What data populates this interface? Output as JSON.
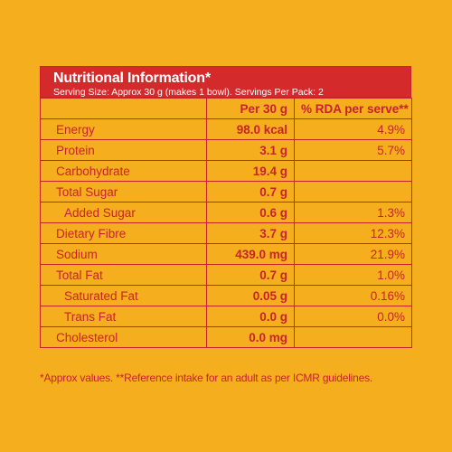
{
  "header": {
    "title": "Nutritional Information*",
    "serving": "Serving Size: Approx 30 g (makes 1 bowl). Servings Per Pack: 2"
  },
  "columns": {
    "per": "Per 30 g",
    "rda": "% RDA per serve**"
  },
  "rows": [
    {
      "name": "Energy",
      "value": "98.0 kcal",
      "rda": "4.9%",
      "indent": false
    },
    {
      "name": "Protein",
      "value": "3.1 g",
      "rda": "5.7%",
      "indent": false
    },
    {
      "name": "Carbohydrate",
      "value": "19.4 g",
      "rda": "",
      "indent": false
    },
    {
      "name": "Total Sugar",
      "value": "0.7 g",
      "rda": "",
      "indent": false
    },
    {
      "name": "Added Sugar",
      "value": "0.6 g",
      "rda": "1.3%",
      "indent": true
    },
    {
      "name": "Dietary Fibre",
      "value": "3.7 g",
      "rda": "12.3%",
      "indent": false
    },
    {
      "name": "Sodium",
      "value": "439.0 mg",
      "rda": "21.9%",
      "indent": false
    },
    {
      "name": "Total Fat",
      "value": "0.7 g",
      "rda": "1.0%",
      "indent": false
    },
    {
      "name": "Saturated Fat",
      "value": "0.05 g",
      "rda": "0.16%",
      "indent": true
    },
    {
      "name": "Trans Fat",
      "value": "0.0 g",
      "rda": "0.0%",
      "indent": true
    },
    {
      "name": "Cholesterol",
      "value": "0.0 mg",
      "rda": "",
      "indent": false
    }
  ],
  "footnote": "*Approx values. **Reference intake for an adult as per ICMR guidelines.",
  "colors": {
    "background": "#f5ae1e",
    "red": "#d42a2c",
    "text": "#c8232c"
  }
}
